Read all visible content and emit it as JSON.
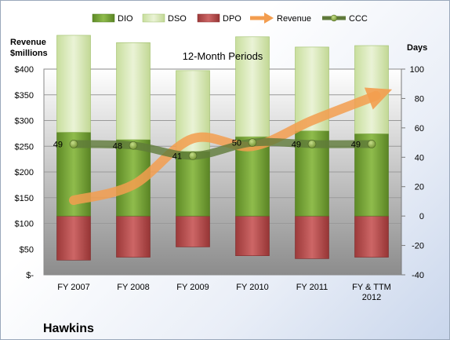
{
  "chart_data": {
    "type": "bar",
    "title": "12-Month Periods",
    "company": "Hawkins",
    "left_axis_title_line1": "Revenue",
    "left_axis_title_line2": "$millions",
    "right_axis_title": "Days",
    "categories": [
      [
        "FY 2007"
      ],
      [
        "FY 2008"
      ],
      [
        "FY 2009"
      ],
      [
        "FY 2010"
      ],
      [
        "FY 2011"
      ],
      [
        "FY & TTM",
        "2012"
      ]
    ],
    "left_axis": {
      "min": 0,
      "max": 400,
      "step": 50,
      "tick_labels": [
        "$-",
        "$50",
        "$100",
        "$150",
        "$200",
        "$250",
        "$300",
        "$350",
        "$400"
      ]
    },
    "right_axis": {
      "min": -40,
      "max": 100,
      "step": 20,
      "tick_labels": [
        "-40",
        "-20",
        "0",
        "20",
        "40",
        "60",
        "80",
        "100"
      ]
    },
    "series": [
      {
        "name": "DIO",
        "kind": "stacked-bar-days",
        "values": [
          57,
          52,
          44,
          54,
          58,
          56
        ],
        "color": "#77a33a"
      },
      {
        "name": "DSO",
        "kind": "stacked-bar-days",
        "values": [
          66,
          66,
          55,
          68,
          57,
          60
        ],
        "color": "#d7e8b4"
      },
      {
        "name": "DPO",
        "kind": "negative-bar-days",
        "values": [
          -30,
          -28,
          -21,
          -27,
          -29,
          -28
        ],
        "color": "#b84b4b"
      },
      {
        "name": "Revenue",
        "kind": "line-left-axis",
        "values": [
          145,
          175,
          265,
          250,
          300,
          345
        ],
        "color": "#f39d4f"
      },
      {
        "name": "CCC",
        "kind": "line-days",
        "values": [
          49,
          48,
          41,
          50,
          49,
          49
        ],
        "color": "#5f7a3a",
        "labels": [
          "49",
          "48",
          "41",
          "50",
          "49",
          "49"
        ]
      }
    ],
    "grid": true,
    "legend_position": "top"
  }
}
